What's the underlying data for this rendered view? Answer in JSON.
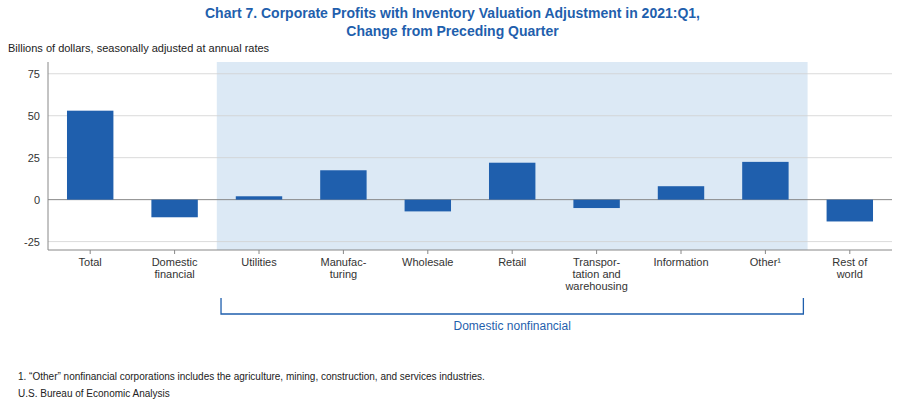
{
  "chart_data": {
    "type": "bar",
    "title": "Chart 7. Corporate Profits with Inventory Valuation Adjustment in 2021:Q1,",
    "subtitle": "Change from Preceding Quarter",
    "ylabel": "Billions of dollars, seasonally adjusted at annual rates",
    "categories": [
      "Total",
      "Domestic\nfinancial",
      "Utilities",
      "Manufac-\nturing",
      "Wholesale",
      "Retail",
      "Transpor-\ntation and\nwarehousing",
      "Information",
      "Other¹",
      "Rest of\nworld"
    ],
    "values": [
      53.0,
      -10.5,
      2.0,
      17.5,
      -7.0,
      22.0,
      -5.0,
      8.0,
      22.5,
      -13.0
    ],
    "color": "#1F5FAD",
    "ylim": [
      -30,
      82
    ],
    "yticks": [
      -25,
      0,
      25,
      50,
      75
    ],
    "grid": true,
    "annotations": [
      {
        "text": "Domestic nonfinancial",
        "from": "Utilities",
        "to": "Other¹",
        "color": "#dce9f5"
      }
    ],
    "footnote": "1. “Other” nonfinancial corporations includes the agriculture, mining, construction, and services industries.",
    "source": "U.S. Bureau of Economic Analysis"
  }
}
